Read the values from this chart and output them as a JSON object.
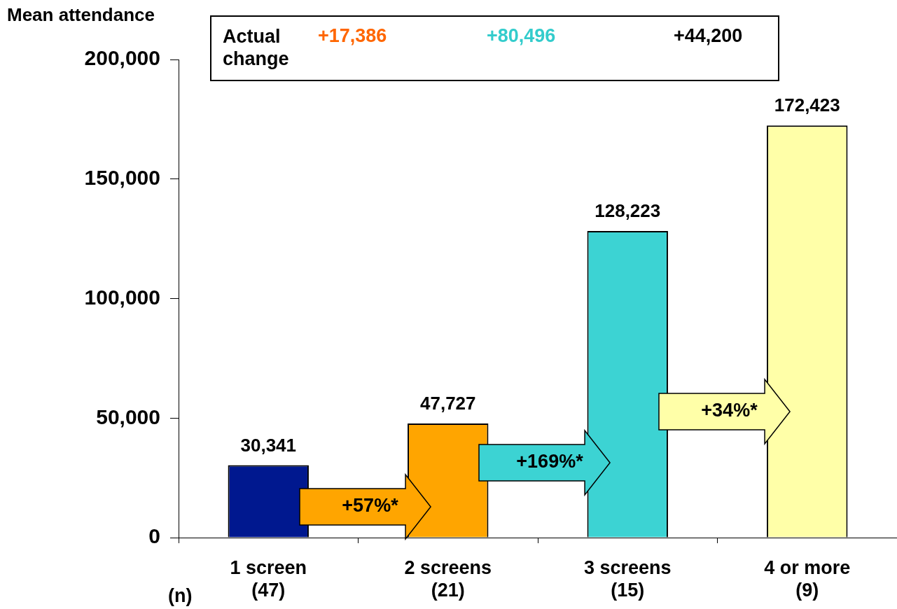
{
  "chart_data": {
    "type": "bar",
    "ylabel": "Mean attendance",
    "categories": [
      "1 screen\n(47)",
      "2 screens\n(21)",
      "3 screens\n(15)",
      "4 or more\n(9)"
    ],
    "values": [
      30341,
      47727,
      128223,
      172423
    ],
    "colors": [
      "#00188f",
      "#ffa500",
      "#3cd3d3",
      "#ffffa8"
    ],
    "ylim": [
      0,
      200000
    ],
    "yticks": [
      {
        "value": 0,
        "label": "0"
      },
      {
        "value": 50000,
        "label": "50,000"
      },
      {
        "value": 100000,
        "label": "100,000"
      },
      {
        "value": 150000,
        "label": "150,000"
      },
      {
        "value": 200000,
        "label": "200,000"
      }
    ],
    "value_labels": [
      "30,341",
      "47,727",
      "128,223",
      "172,423"
    ],
    "grid": false,
    "legend": false,
    "annotations": [
      "Actual change",
      "+17,386",
      "+80,496",
      "+44,200",
      "+57%*",
      "+169%*",
      "+34%*",
      "(n)"
    ]
  }
}
